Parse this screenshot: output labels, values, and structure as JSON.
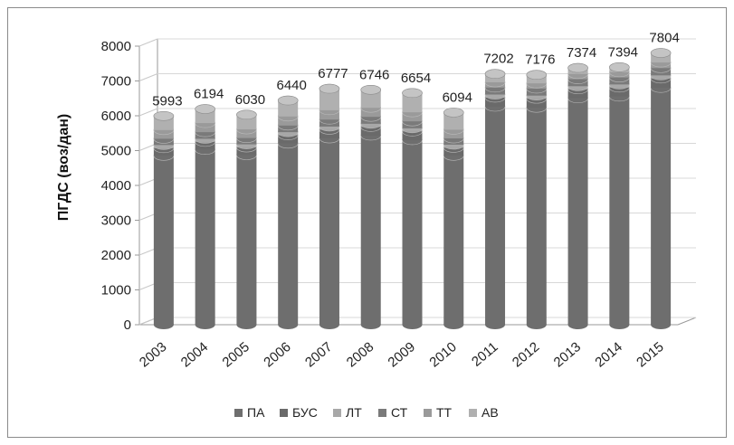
{
  "chart_data": {
    "type": "bar",
    "style": "3d-stacked-cylinder",
    "title": "",
    "xlabel": "",
    "ylabel": "ПГДС (воз/дан)",
    "ylim": [
      0,
      8000
    ],
    "yticks": [
      "0",
      "1000",
      "2000",
      "3000",
      "4000",
      "5000",
      "6000",
      "7000",
      "8000"
    ],
    "categories": [
      "2003",
      "2004",
      "2005",
      "2006",
      "2007",
      "2008",
      "2009",
      "2010",
      "2011",
      "2012",
      "2013",
      "2014",
      "2015"
    ],
    "totals": [
      5993,
      6194,
      6030,
      6440,
      6777,
      6746,
      6654,
      6094,
      7202,
      7176,
      7374,
      7394,
      7804
    ],
    "total_labels": [
      "5993",
      "6194",
      "6030",
      "6440",
      "6777",
      "6746",
      "6654",
      "6094",
      "7202",
      "7176",
      "7374",
      "7394",
      "7804"
    ],
    "series": [
      {
        "name": "ПА",
        "color": "#6e6e6e",
        "values": [
          4850,
          5020,
          4870,
          5200,
          5350,
          5430,
          5300,
          4850,
          6260,
          6230,
          6500,
          6550,
          6800
        ]
      },
      {
        "name": "БУС",
        "color": "#6a6a6a",
        "values": [
          220,
          230,
          220,
          240,
          250,
          250,
          250,
          230,
          260,
          260,
          260,
          260,
          270
        ]
      },
      {
        "name": "ЛТ",
        "color": "#a8a8a8",
        "values": [
          90,
          90,
          90,
          90,
          90,
          90,
          90,
          90,
          90,
          90,
          90,
          90,
          90
        ]
      },
      {
        "name": "СТ",
        "color": "#7a7a7a",
        "values": [
          180,
          190,
          180,
          190,
          200,
          200,
          200,
          180,
          200,
          200,
          200,
          200,
          210
        ]
      },
      {
        "name": "ТТ",
        "color": "#9a9a9a",
        "values": [
          250,
          260,
          250,
          260,
          270,
          260,
          260,
          250,
          150,
          150,
          150,
          150,
          160
        ]
      },
      {
        "name": "АВ",
        "color": "#b0b0b0",
        "values": [
          403,
          404,
          420,
          460,
          617,
          516,
          554,
          494,
          242,
          246,
          174,
          144,
          274
        ]
      }
    ],
    "grid": false,
    "legend_position": "bottom"
  }
}
